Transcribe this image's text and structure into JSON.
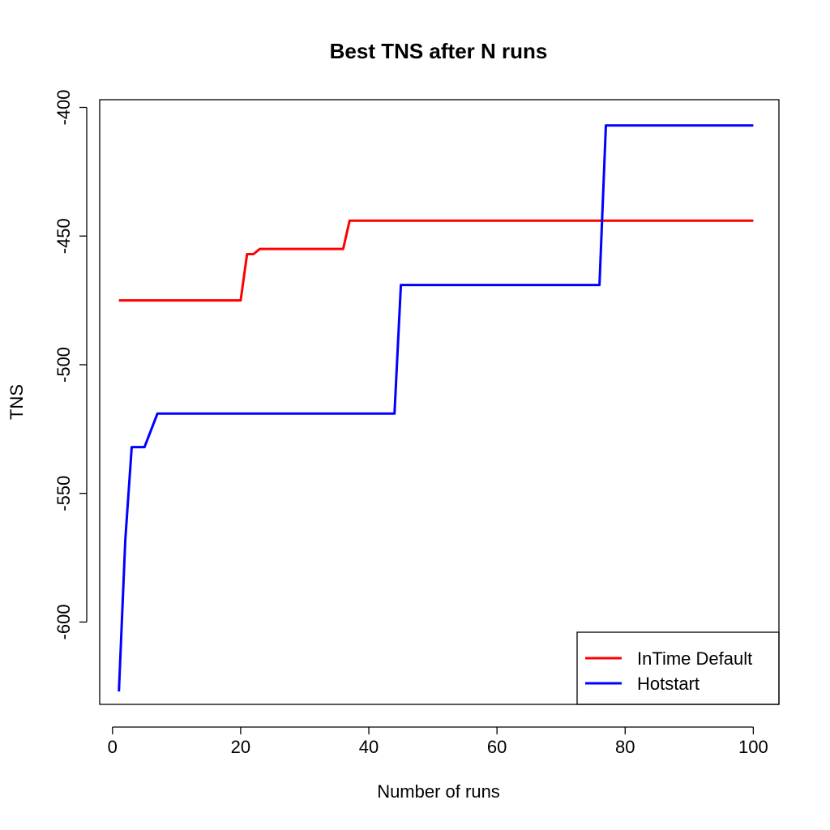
{
  "chart_data": {
    "type": "line",
    "title": "Best TNS after N runs",
    "xlabel": "Number of runs",
    "ylabel": "TNS",
    "xlim": [
      -2,
      104
    ],
    "ylim": [
      -632,
      -397
    ],
    "xticks": [
      0,
      20,
      40,
      60,
      80,
      100
    ],
    "yticks": [
      -400,
      -450,
      -500,
      -550,
      -600
    ],
    "grid": false,
    "legend_position": "bottom-right",
    "series": [
      {
        "name": "InTime Default",
        "color": "#ff0000",
        "points": [
          [
            1,
            -475
          ],
          [
            20,
            -475
          ],
          [
            21,
            -457
          ],
          [
            22,
            -457
          ],
          [
            23,
            -455
          ],
          [
            36,
            -455
          ],
          [
            37,
            -444
          ],
          [
            100,
            -444
          ]
        ]
      },
      {
        "name": "Hotstart",
        "color": "#0000ff",
        "points": [
          [
            1,
            -627
          ],
          [
            2,
            -568
          ],
          [
            3,
            -532
          ],
          [
            5,
            -532
          ],
          [
            7,
            -519
          ],
          [
            44,
            -519
          ],
          [
            45,
            -469
          ],
          [
            76,
            -469
          ],
          [
            77,
            -407
          ],
          [
            100,
            -407
          ]
        ]
      }
    ]
  }
}
